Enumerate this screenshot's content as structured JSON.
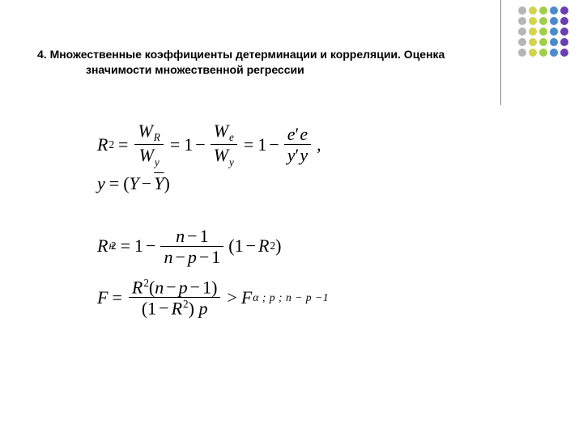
{
  "title_line1": "4. Множественные коэффициенты детерминации и корреляции. Оценка",
  "title_line2": "значимости множественной регрессии",
  "decor": {
    "colors": [
      "#b5b5b5",
      "#d4d44a",
      "#9fcf4a",
      "#4a8acf",
      "#6a3fb5",
      "#b5b5b5",
      "#d4d44a",
      "#9fcf4a",
      "#4a8acf",
      "#6a3fb5",
      "#b5b5b5",
      "#d4d44a",
      "#9fcf4a",
      "#4a8acf",
      "#6a3fb5",
      "#b5b5b5",
      "#d4d44a",
      "#9fcf4a",
      "#4a8acf",
      "#6a3fb5",
      "#b5b5b5",
      "#d4d44a",
      "#9fcf4a",
      "#4a8acf",
      "#6a3fb5"
    ]
  },
  "f1": {
    "lhs": "R",
    "lhs_sup": "2",
    "frac1_num_a": "W",
    "frac1_num_sub": "R",
    "frac1_den_a": "W",
    "frac1_den_sub": "y",
    "one1": "1",
    "frac2_num_a": "W",
    "frac2_num_sub": "e",
    "frac2_den_a": "W",
    "frac2_den_sub": "y",
    "one2": "1",
    "frac3_num": "e",
    "frac3_num2": "e",
    "frac3_den": "y",
    "frac3_den2": "y",
    "tail": ","
  },
  "f2": {
    "lhs": "y",
    "open": "(",
    "Y1": "Y",
    "Y2": "Y",
    "close": ")"
  },
  "f3": {
    "lhs": "R",
    "lhs_sub": "н",
    "lhs_sup": "2",
    "one1": "1",
    "numL": "n",
    "numR": "1",
    "denL": "n",
    "denM": "p",
    "denR": "1",
    "one2": "1",
    "R": "R",
    "R_sup": "2",
    "open": "(",
    "close": ")"
  },
  "f4": {
    "lhs": "F",
    "numR": "R",
    "numR_sup": "2",
    "num_open": "(",
    "numA": "n",
    "numB": "p",
    "numC": "1",
    "num_close": ")",
    "den_open": "(",
    "den1": "1",
    "denR": "R",
    "denR_sup": "2",
    "den_close": ")",
    "denP": "p",
    "gt": ">",
    "rhsF": "F",
    "rhs_sub": "α ; p ; n − p −1"
  }
}
